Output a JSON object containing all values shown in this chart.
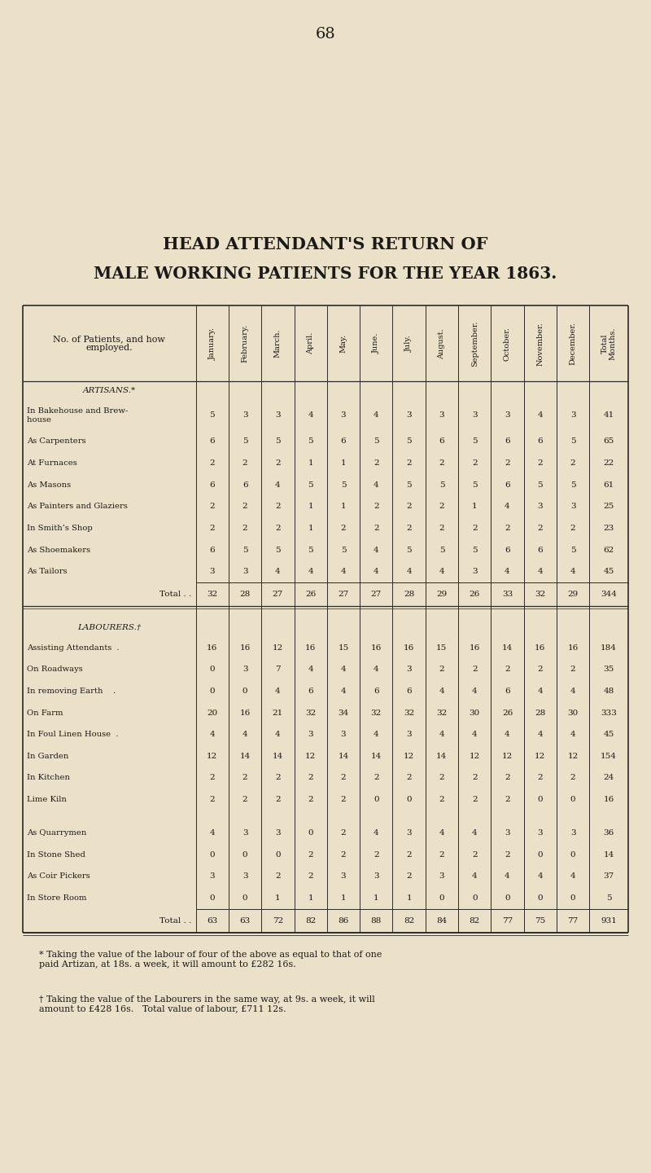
{
  "page_number": "68",
  "title_line1": "HEAD ATTENDANT'S RETURN OF",
  "title_line2": "MALE WORKING PATIENTS FOR THE YEAR 1863.",
  "bg_color": "#EBE0C8",
  "artisan_rows": [
    [
      "In Bakehouse and Brew-\nhouse             ",
      [
        5,
        3,
        3,
        4,
        3,
        4,
        3,
        3,
        3,
        3,
        4,
        3,
        41
      ]
    ],
    [
      "As Carpenters         ",
      [
        6,
        5,
        5,
        5,
        6,
        5,
        5,
        6,
        5,
        6,
        6,
        5,
        65
      ]
    ],
    [
      "At Furnaces           ",
      [
        2,
        2,
        2,
        1,
        1,
        2,
        2,
        2,
        2,
        2,
        2,
        2,
        22
      ]
    ],
    [
      "As Masons              ",
      [
        6,
        6,
        4,
        5,
        5,
        4,
        5,
        5,
        5,
        6,
        5,
        5,
        61
      ]
    ],
    [
      "As Painters and Glaziers",
      [
        2,
        2,
        2,
        1,
        1,
        2,
        2,
        2,
        1,
        4,
        3,
        3,
        25
      ]
    ],
    [
      "In Smith’s Shop      ",
      [
        2,
        2,
        2,
        1,
        2,
        2,
        2,
        2,
        2,
        2,
        2,
        2,
        23
      ]
    ],
    [
      "As Shoemakers        ",
      [
        6,
        5,
        5,
        5,
        5,
        4,
        5,
        5,
        5,
        6,
        6,
        5,
        62
      ]
    ],
    [
      "As Tailors            ",
      [
        3,
        3,
        4,
        4,
        4,
        4,
        4,
        4,
        3,
        4,
        4,
        4,
        45
      ]
    ]
  ],
  "artisan_totals": [
    32,
    28,
    27,
    26,
    27,
    27,
    28,
    29,
    26,
    33,
    32,
    29,
    344
  ],
  "labourer_rows_a": [
    [
      "Assisting Attendants  .",
      [
        16,
        16,
        12,
        16,
        15,
        16,
        16,
        15,
        16,
        14,
        16,
        16,
        184
      ]
    ],
    [
      "On Roadways         ",
      [
        0,
        3,
        7,
        4,
        4,
        4,
        3,
        2,
        2,
        2,
        2,
        2,
        35
      ]
    ],
    [
      "In removing Earth    .",
      [
        0,
        0,
        4,
        6,
        4,
        6,
        6,
        4,
        4,
        6,
        4,
        4,
        48
      ]
    ],
    [
      "On Farm              ",
      [
        20,
        16,
        21,
        32,
        34,
        32,
        32,
        32,
        30,
        26,
        28,
        30,
        333
      ]
    ],
    [
      "In Foul Linen House  .",
      [
        4,
        4,
        4,
        3,
        3,
        4,
        3,
        4,
        4,
        4,
        4,
        4,
        45
      ]
    ],
    [
      "In Garden            ",
      [
        12,
        14,
        14,
        12,
        14,
        14,
        12,
        14,
        12,
        12,
        12,
        12,
        154
      ]
    ],
    [
      "In Kitchen           ",
      [
        2,
        2,
        2,
        2,
        2,
        2,
        2,
        2,
        2,
        2,
        2,
        2,
        24
      ]
    ],
    [
      "Lime Kiln            ",
      [
        2,
        2,
        2,
        2,
        2,
        0,
        0,
        2,
        2,
        2,
        0,
        0,
        16
      ]
    ]
  ],
  "labourer_rows_b": [
    [
      "As Quarrymen       ",
      [
        4,
        3,
        3,
        0,
        2,
        4,
        3,
        4,
        4,
        3,
        3,
        3,
        36
      ]
    ],
    [
      "In Stone Shed        ",
      [
        0,
        0,
        0,
        2,
        2,
        2,
        2,
        2,
        2,
        2,
        0,
        0,
        14
      ]
    ],
    [
      "As Coir Pickers      ",
      [
        3,
        3,
        2,
        2,
        3,
        3,
        2,
        3,
        4,
        4,
        4,
        4,
        37
      ]
    ],
    [
      "In Store Room        ",
      [
        0,
        0,
        1,
        1,
        1,
        1,
        1,
        0,
        0,
        0,
        0,
        0,
        5
      ]
    ]
  ],
  "labourer_totals": [
    63,
    63,
    72,
    82,
    86,
    88,
    82,
    84,
    82,
    77,
    75,
    77,
    931
  ],
  "footnote1": "* Taking the value of the labour of four of the above as equal to that of one\npaid Artizan, at 18s. a week, it will amount to £282 16s.",
  "footnote2": "† Taking the value of the Labourers in the same way, at 9s. a week, it will\namount to £428 16s.   Total value of labour, £711 12s."
}
